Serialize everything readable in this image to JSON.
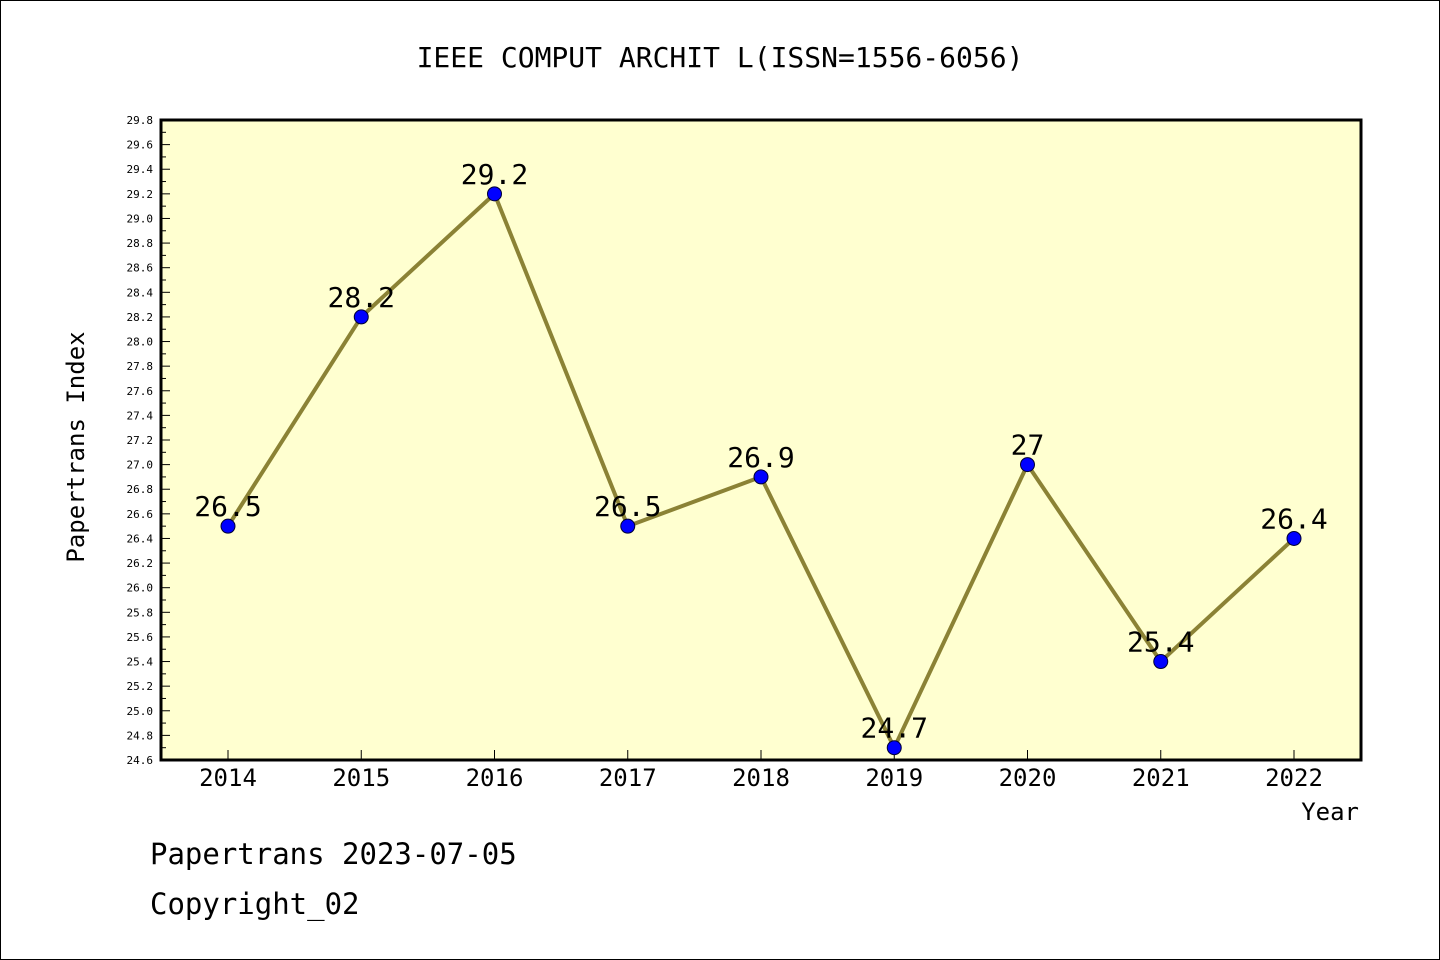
{
  "chart_data": {
    "type": "line",
    "title": "IEEE COMPUT ARCHIT L(ISSN=1556-6056)",
    "xlabel": "Year",
    "ylabel": "Papertrans Index",
    "categories": [
      "2014",
      "2015",
      "2016",
      "2017",
      "2018",
      "2019",
      "2020",
      "2021",
      "2022"
    ],
    "series": [
      {
        "values": [
          26.5,
          28.2,
          29.2,
          26.5,
          26.9,
          24.7,
          27,
          25.4,
          26.4
        ],
        "labels": [
          "26.5",
          "28.2",
          "29.2",
          "26.5",
          "26.9",
          "24.7",
          "27",
          "25.4",
          "26.4"
        ]
      }
    ],
    "ylim": [
      24.6,
      29.8
    ],
    "yticks": [
      "24.6",
      "24.8",
      "25.0",
      "25.2",
      "25.4",
      "25.6",
      "25.8",
      "26.0",
      "26.2",
      "26.4",
      "26.6",
      "26.8",
      "27.0",
      "27.2",
      "27.4",
      "27.6",
      "27.8",
      "28.0",
      "28.2",
      "28.4",
      "28.6",
      "28.8",
      "29.0",
      "29.2",
      "29.4",
      "29.6",
      "29.8"
    ],
    "grid": false,
    "legend": "none",
    "colors": {
      "plot_background": "#ffffd0",
      "line": "#8b8235",
      "marker": "#0000ff"
    }
  },
  "footer": {
    "line1": "Papertrans 2023-07-05",
    "line2": "Copyright_02"
  }
}
